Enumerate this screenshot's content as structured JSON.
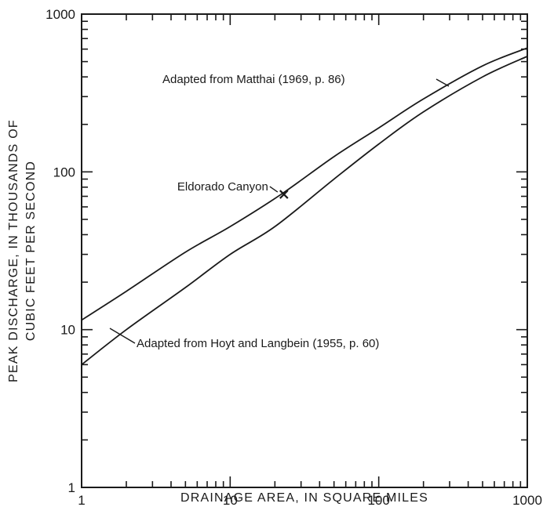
{
  "chart_data": {
    "type": "line",
    "title": "",
    "xlabel": "DRAINAGE AREA, IN SQUARE MILES",
    "ylabel_line1": "PEAK DISCHARGE, IN THOUSANDS OF",
    "ylabel_line2": "CUBIC FEET  PER SECOND",
    "x_scale": "log",
    "y_scale": "log",
    "xlim": [
      1,
      1000
    ],
    "ylim": [
      1,
      1000
    ],
    "grid": false,
    "x_ticks": [
      1,
      10,
      100,
      1000
    ],
    "x_tick_labels": [
      "1",
      "10",
      "100",
      "1000"
    ],
    "y_ticks": [
      1,
      10,
      100,
      1000
    ],
    "y_tick_labels": [
      "1",
      "10",
      "100",
      "1000"
    ],
    "series": [
      {
        "name": "Adapted from Matthai (1969, p. 86)",
        "color": "#1a1a1a",
        "x": [
          1,
          2,
          5,
          10,
          22,
          50,
          100,
          200,
          500,
          1000
        ],
        "y": [
          11.5,
          17.5,
          31,
          45,
          72,
          125,
          190,
          290,
          470,
          610
        ]
      },
      {
        "name": "Adapted from Hoyt and Langbein (1955, p. 60)",
        "color": "#1a1a1a",
        "x": [
          1,
          2,
          5,
          10,
          20,
          50,
          100,
          200,
          500,
          1000
        ],
        "y": [
          6,
          10,
          18.5,
          30,
          45,
          90,
          150,
          240,
          400,
          540
        ]
      }
    ],
    "points": [
      {
        "label": "Eldorado Canyon",
        "x": 23,
        "y": 72,
        "marker": "x"
      }
    ],
    "annotations": [
      "Adapted from Matthai (1969, p. 86)",
      "Adapted from Hoyt and Langbein (1955, p. 60)",
      "Eldorado Canyon"
    ]
  }
}
